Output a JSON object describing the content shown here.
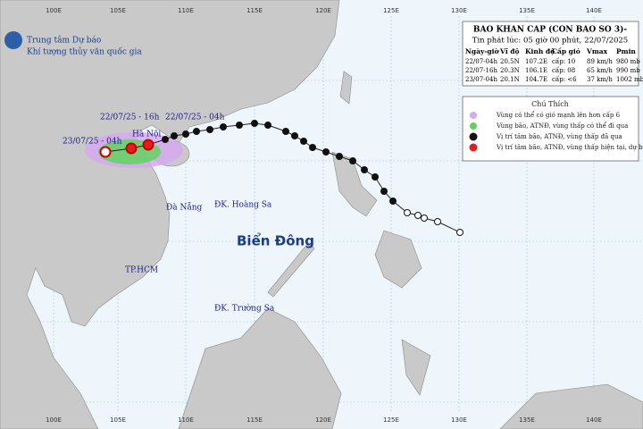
{
  "header": {
    "agency": "Trung tâm Dự báo",
    "agency_sub": "Khí tượng thủy văn quốc gia"
  },
  "longitude_labels": [
    "100E",
    "105E",
    "110E",
    "115E",
    "120E",
    "125E",
    "130E",
    "135E",
    "140E"
  ],
  "bulletin": {
    "title": "BAO KHAN CAP (CON BAO SO 3)-",
    "issued": "Tin phát lúc: 05 giờ 00 phút, 22/07/2025",
    "columns": [
      "Ngày-giờ",
      "Vĩ độ",
      "Kinh độ",
      "Cấp gió",
      "Vmax",
      "Pmin"
    ],
    "rows": [
      [
        "22/07-04h",
        "20.5N",
        "107.2E",
        "cấp: 10",
        "89 km/h",
        "980 mb"
      ],
      [
        "22/07-16h",
        "20.3N",
        "106.1E",
        "cấp: 08",
        "65 km/h",
        "990 mb"
      ],
      [
        "23/07-04h",
        "20.1N",
        "104.7E",
        "cấp: <6",
        "37 km/h",
        "1002 mb"
      ]
    ]
  },
  "legend": {
    "title": "Chú Thích",
    "items": [
      "Vùng có thể có gió mạnh lên hơn cấp 6",
      "Vùng bão, ATNĐ, vùng thấp có thể đi qua",
      "Vị trí tâm bão, ATNĐ, vùng thấp đã qua",
      "Vị trí tâm bão, ATNĐ, vùng thấp hiện tại, dự báo"
    ]
  },
  "map_labels": {
    "time_1": "22/07/25 - 16h",
    "time_2": "22/07/25 - 04h",
    "time_3": "23/07/25 - 04h",
    "hanoi": "Hà Nội",
    "danang": "Đà Nẵng",
    "hoangsa": "ĐK. Hoàng Sa",
    "sea": "Biển Đông",
    "hcm": "TP.HCM",
    "truongsa": "ĐK. Trường Sa"
  }
}
